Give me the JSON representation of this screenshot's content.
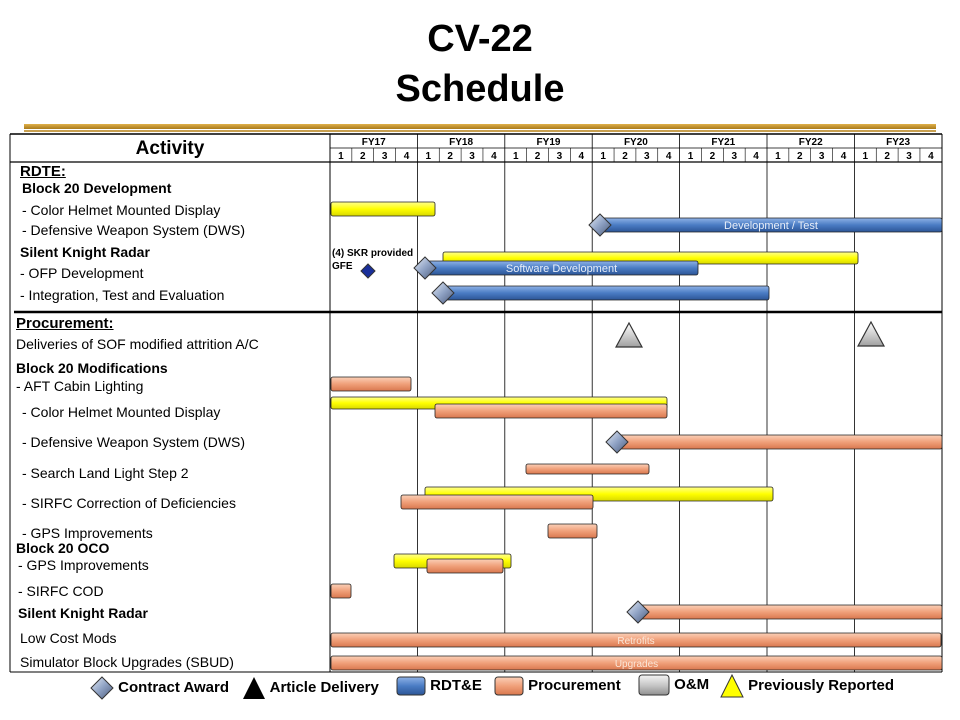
{
  "title": {
    "line1": "CV-22",
    "line2": "Schedule"
  },
  "table": {
    "activity_header": "Activity",
    "fiscal_years": [
      "FY17",
      "FY18",
      "FY19",
      "FY20",
      "FY21",
      "FY22",
      "FY23"
    ],
    "quarters": [
      "1",
      "2",
      "3",
      "4"
    ]
  },
  "rows": [
    {
      "label": "RDTE:"
    },
    {
      "label": "Block 20 Development"
    },
    {
      "label": "- Color Helmet Mounted Display"
    },
    {
      "label": "- Defensive Weapon System (DWS)"
    },
    {
      "label": "Silent Knight Radar"
    },
    {
      "label": "- OFP Development"
    },
    {
      "label": "- Integration, Test and Evaluation"
    },
    {
      "label": "Procurement:"
    },
    {
      "label": "Deliveries of SOF modified attrition A/C"
    },
    {
      "label": "Block 20 Modifications"
    },
    {
      "label": "- AFT Cabin Lighting"
    },
    {
      "label": "- Color Helmet Mounted Display"
    },
    {
      "label": "- Defensive Weapon System (DWS)"
    },
    {
      "label": "- Search Land Light Step 2"
    },
    {
      "label": "- SIRFC Correction of Deficiencies"
    },
    {
      "label": "- GPS Improvements"
    },
    {
      "label": "Block 20 OCO"
    },
    {
      "label": "- GPS Improvements"
    },
    {
      "label": "- SIRFC COD"
    },
    {
      "label": "Silent Knight Radar"
    },
    {
      "label": "Low Cost Mods"
    },
    {
      "label": "Simulator Block Upgrades (SBUD)"
    }
  ],
  "annotations": {
    "skr_note": "(4) SKR provided GFE",
    "dws_dev": "Development  / Test",
    "ofp_sw": "Software Development",
    "retrofits": "Retrofits",
    "upgrades": "Upgrades"
  },
  "legend": {
    "contract_award": "Contract Award",
    "article_delivery": "Article Delivery",
    "rdte": "RDT&E",
    "procurement": "Procurement",
    "om": "O&M",
    "previously_reported": "Previously Reported"
  },
  "colors": {
    "rdte": "#4a7cc4",
    "procurement": "#f0a07a",
    "previously_reported": "#ffff00",
    "om": "#c8c8c8",
    "contract_award": "#8fa2c4",
    "skr_diamond": "#1a2f9a"
  }
}
